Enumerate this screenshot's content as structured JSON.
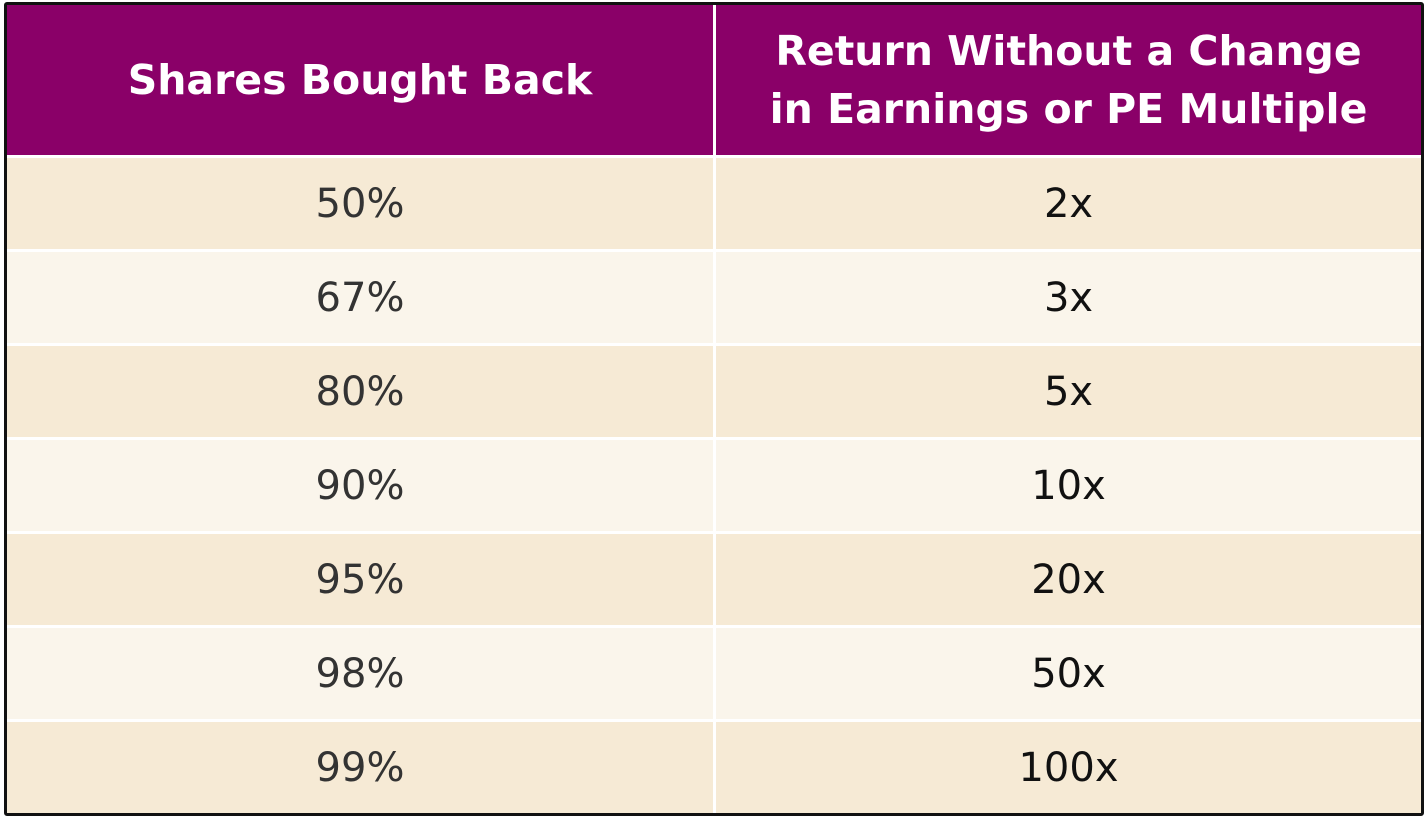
{
  "table": {
    "headers": [
      [
        "Shares Bought Back"
      ],
      [
        "Return Without a Change",
        "in Earnings or PE Multiple"
      ]
    ],
    "rows": [
      [
        "50%",
        "2x"
      ],
      [
        "67%",
        "3x"
      ],
      [
        "80%",
        "5x"
      ],
      [
        "90%",
        "10x"
      ],
      [
        "95%",
        "20x"
      ],
      [
        "98%",
        "50x"
      ],
      [
        "99%",
        "100x"
      ]
    ]
  }
}
